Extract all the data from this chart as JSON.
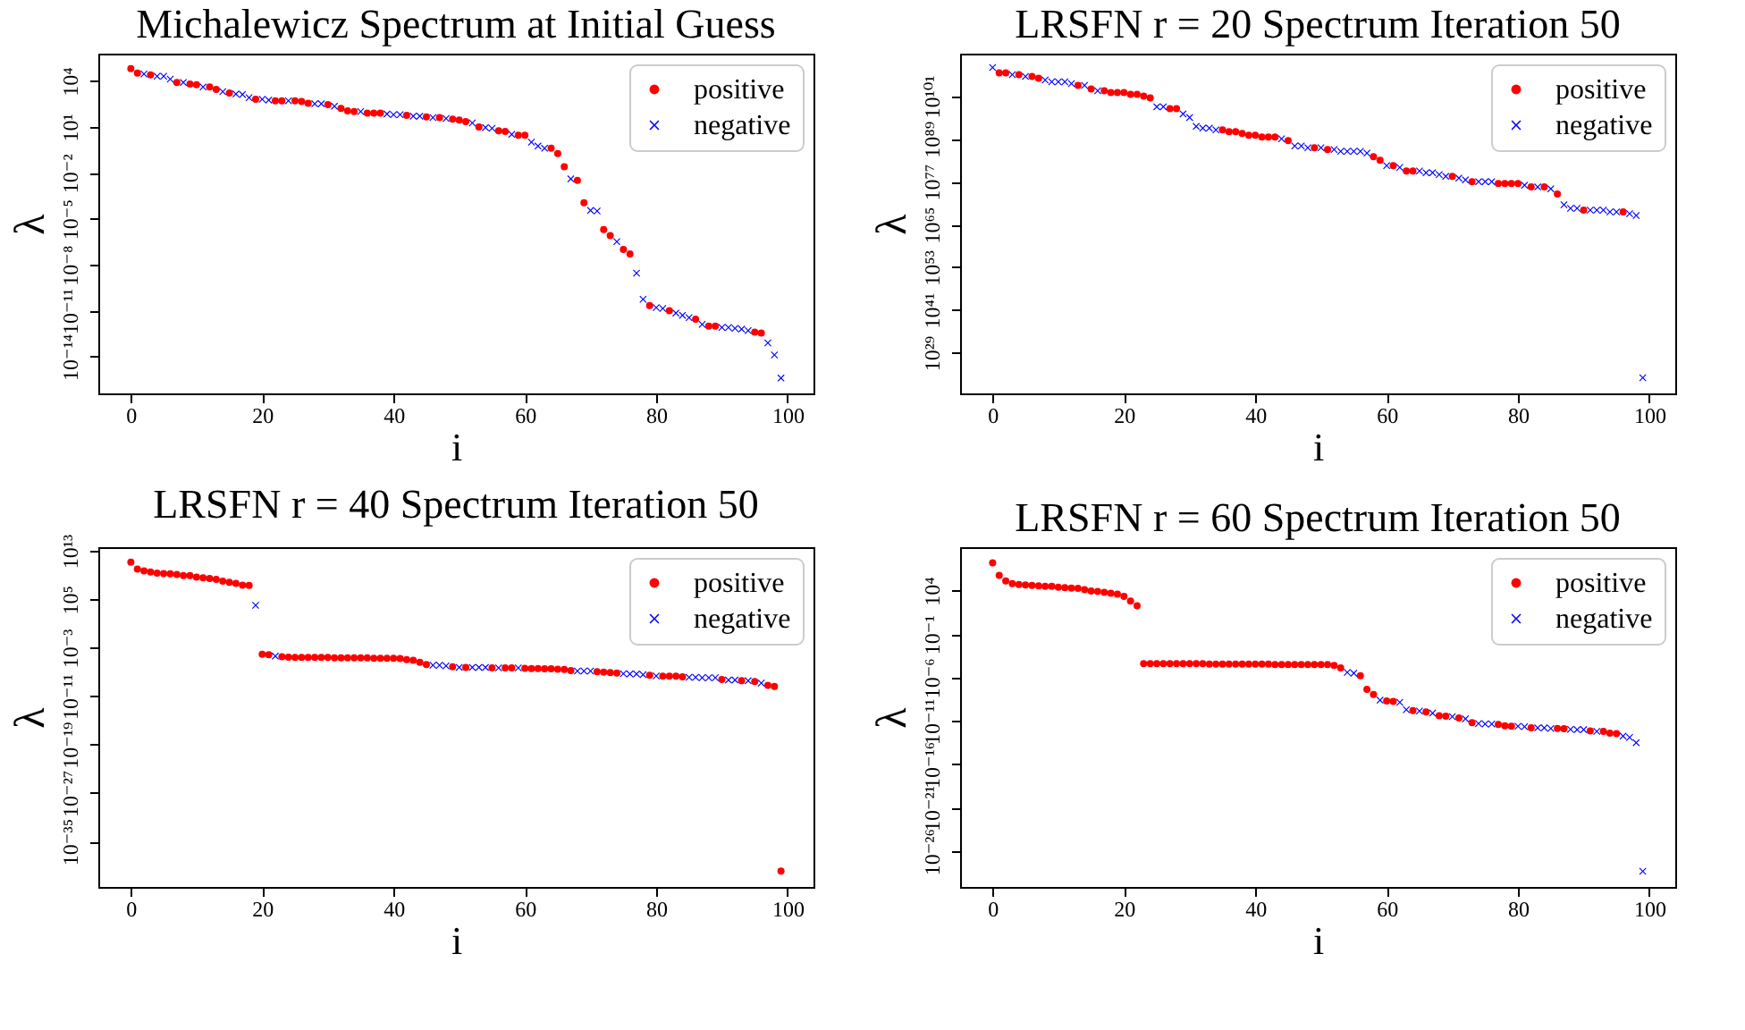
{
  "chart_data": [
    {
      "type": "scatter",
      "title": "Michalewicz Spectrum at Initial Guess",
      "xlabel": "i",
      "ylabel": "λ",
      "log": "y",
      "grid": false,
      "legend": "top right",
      "xlim": [
        -4.95,
        103.95
      ],
      "xticks": [
        0,
        20,
        40,
        60,
        80,
        100
      ],
      "ylim": [
        4e-17,
        600000.0
      ],
      "yticks": [
        {
          "value": 1e-14,
          "label": "10⁻¹⁴"
        },
        {
          "value": 1e-11,
          "label": "10⁻¹¹"
        },
        {
          "value": 1e-08,
          "label": "10⁻⁸"
        },
        {
          "value": 1e-05,
          "label": "10⁻⁵"
        },
        {
          "value": 0.01,
          "label": "10⁻²"
        },
        {
          "value": 10,
          "label": "10¹"
        },
        {
          "value": 10000.0,
          "label": "10⁴"
        }
      ],
      "series": [
        {
          "name": "positive",
          "color": "#ff0000",
          "marker": "circle",
          "x": [
            0,
            1,
            3,
            7,
            9,
            10,
            12,
            13,
            15,
            19,
            22,
            23,
            25,
            26,
            27,
            30,
            32,
            33,
            34,
            36,
            37,
            38,
            42,
            45,
            47,
            49,
            50,
            51,
            53,
            56,
            57,
            59,
            60,
            64,
            65,
            66,
            68,
            69,
            72,
            73,
            75,
            76,
            79,
            82,
            86,
            88,
            89,
            95,
            96
          ],
          "values": [
            63000.0,
            32000.0,
            25000.0,
            8000.0,
            6300.0,
            5600.0,
            4000.0,
            2800.0,
            1600.0,
            630.0,
            500.0,
            500.0,
            500.0,
            450.0,
            350.0,
            280.0,
            160.0,
            110.0,
            100.0,
            80,
            80,
            80,
            56,
            45,
            40,
            32,
            28,
            22,
            10,
            5.6,
            5,
            2.8,
            2.8,
            0.4,
            0.18,
            0.025,
            0.0032,
            0.00011,
            2e-06,
            8e-07,
            1e-07,
            5e-08,
            2.2e-11,
            1e-11,
            2.8e-12,
            1e-12,
            1e-12,
            4e-13,
            3.5e-13
          ]
        },
        {
          "name": "negative",
          "color": "#0000ff",
          "marker": "cross",
          "x": [
            2,
            4,
            5,
            6,
            8,
            11,
            14,
            16,
            17,
            18,
            20,
            21,
            24,
            28,
            29,
            31,
            35,
            39,
            40,
            41,
            43,
            44,
            46,
            48,
            52,
            54,
            55,
            58,
            61,
            62,
            63,
            67,
            70,
            71,
            74,
            77,
            78,
            80,
            81,
            83,
            84,
            85,
            87,
            90,
            91,
            92,
            93,
            94,
            97,
            98,
            99
          ],
          "values": [
            28000.0,
            20000.0,
            20000.0,
            13000.0,
            8000.0,
            4000.0,
            2000.0,
            1400.0,
            1300.0,
            800.0,
            630.0,
            560.0,
            500.0,
            320.0,
            320.0,
            220.0,
            100.0,
            70,
            63,
            63,
            50,
            50,
            40,
            35,
            18,
            9,
            8,
            3.2,
            1,
            0.56,
            0.4,
            0.004,
            3.5e-05,
            3.2e-05,
            3.2e-07,
            2.8e-09,
            5.6e-11,
            1.6e-11,
            1.4e-11,
            7e-12,
            5e-12,
            3.5e-12,
            1.3e-12,
            8e-13,
            8e-13,
            7e-13,
            6.3e-13,
            5e-13,
            8e-14,
            1.3e-14,
            4e-16
          ]
        }
      ]
    },
    {
      "type": "scatter",
      "title": "LRSFN r = 20 Spectrum Iteration 50",
      "xlabel": "i",
      "ylabel": "λ",
      "log": "y",
      "grid": false,
      "legend": "top right",
      "xlim": [
        -4.95,
        103.95
      ],
      "xticks": [
        0,
        20,
        40,
        60,
        80,
        100
      ],
      "ylim": [
        4e+17,
        8e+112
      ],
      "yticks": [
        {
          "value": 1e+29,
          "label": "10²⁹"
        },
        {
          "value": 1e+41,
          "label": "10⁴¹"
        },
        {
          "value": 1e+53,
          "label": "10⁵³"
        },
        {
          "value": 1e+65,
          "label": "10⁶⁵"
        },
        {
          "value": 1e+77,
          "label": "10⁷⁷"
        },
        {
          "value": 1e+89,
          "label": "10⁸⁹"
        },
        {
          "value": 1e+101,
          "label": "10¹⁰¹"
        }
      ],
      "series": [
        {
          "name": "positive",
          "color": "#ff0000",
          "marker": "circle",
          "x": [
            1,
            2,
            4,
            6,
            7,
            13,
            15,
            17,
            18,
            19,
            20,
            21,
            22,
            23,
            24,
            27,
            28,
            35,
            36,
            37,
            38,
            39,
            40,
            41,
            42,
            43,
            45,
            49,
            51,
            58,
            59,
            61,
            63,
            64,
            70,
            73,
            77,
            78,
            79,
            80,
            82,
            84,
            86,
            90,
            96
          ],
          "values": [
            3.2e+107,
            3.2e+107,
            1e+107,
            3.2e+106,
            1e+106,
            1e+104,
            1e+103,
            3.2e+102,
            1e+102,
            1e+102,
            1e+102,
            3.2e+101,
            3.2e+101,
            1e+101,
            3.2e+100,
            3.2e+97,
            3.2e+97,
            3.2e+91,
            1e+91,
            1e+91,
            3.2e+90,
            1e+90,
            1e+90,
            3.2e+89,
            3.2e+89,
            3.2e+89,
            3.2e+88,
            3.2e+86,
            1e+86,
            1e+84,
            1e+83,
            3.2e+81,
            1e+80,
            1e+80,
            3.2e+78,
            1e+77,
            3.2e+76,
            3.2e+76,
            3.2e+76,
            3.2e+76,
            3.2e+75,
            3.2e+75,
            3.2e+73,
            1e+69,
            3.2e+68
          ]
        },
        {
          "name": "negative",
          "color": "#0000ff",
          "marker": "cross",
          "x": [
            0,
            3,
            5,
            8,
            9,
            10,
            11,
            12,
            14,
            16,
            25,
            26,
            29,
            30,
            31,
            32,
            33,
            34,
            44,
            46,
            47,
            48,
            50,
            52,
            53,
            54,
            55,
            56,
            57,
            60,
            62,
            65,
            66,
            67,
            68,
            69,
            71,
            72,
            74,
            75,
            76,
            81,
            83,
            85,
            87,
            88,
            89,
            91,
            92,
            93,
            94,
            95,
            97,
            98,
            99
          ],
          "values": [
            1e+109,
            1e+107,
            3.2e+106,
            3.2e+105,
            1e+105,
            1e+105,
            1e+105,
            3.2e+104,
            1e+104,
            3.2e+102,
            1e+98,
            1e+98,
            1e+96,
            1e+95,
            3.2e+92,
            1e+92,
            1e+92,
            3.2e+91,
            1e+89,
            1e+87,
            1e+87,
            3.2e+86,
            3.2e+86,
            1e+86,
            3.2e+85,
            3.2e+85,
            3.2e+85,
            3.2e+85,
            1e+85,
            3.2e+81,
            1e+81,
            1e+80,
            3.2e+79,
            3.2e+79,
            1e+79,
            3.2e+78,
            1e+78,
            3.2e+77,
            1e+77,
            1e+77,
            1e+77,
            1e+76,
            3.2e+75,
            1e+75,
            3.2e+70,
            3.2e+69,
            3.2e+69,
            1e+69,
            1e+69,
            1e+69,
            3.2e+68,
            3.2e+68,
            1e+68,
            3.2e+67,
            1e+22
          ]
        }
      ]
    },
    {
      "type": "scatter",
      "title": "LRSFN r = 40 Spectrum Iteration 50",
      "xlabel": "i",
      "ylabel": "λ",
      "log": "y",
      "grid": false,
      "legend": "top right",
      "xlim": [
        -4.95,
        103.95
      ],
      "xticks": [
        0,
        20,
        40,
        60,
        80,
        100
      ],
      "ylim": [
        3e-43,
        40000000000000.0
      ],
      "yticks": [
        {
          "value": 1e-35,
          "label": "10⁻³⁵"
        },
        {
          "value": 1e-27,
          "label": "10⁻²⁷"
        },
        {
          "value": 1e-19,
          "label": "10⁻¹⁹"
        },
        {
          "value": 1e-11,
          "label": "10⁻¹¹"
        },
        {
          "value": 0.001,
          "label": "10⁻³"
        },
        {
          "value": 100000.0,
          "label": "10⁵"
        },
        {
          "value": 10000000000000.0,
          "label": "10¹³"
        }
      ],
      "series": [
        {
          "name": "positive",
          "color": "#ff0000",
          "marker": "circle",
          "x": [
            0,
            1,
            2,
            3,
            4,
            5,
            6,
            7,
            8,
            9,
            10,
            11,
            12,
            13,
            14,
            15,
            16,
            17,
            18,
            20,
            21,
            23,
            24,
            25,
            26,
            27,
            28,
            29,
            30,
            31,
            32,
            33,
            34,
            35,
            36,
            37,
            38,
            39,
            40,
            41,
            42,
            43,
            44,
            45,
            49,
            51,
            55,
            57,
            58,
            60,
            61,
            62,
            63,
            64,
            65,
            66,
            67,
            71,
            72,
            73,
            74,
            79,
            81,
            82,
            83,
            84,
            90,
            93,
            95,
            97,
            98,
            99
          ],
          "values": [
            130000000000.0,
            10000000000.0,
            5000000000.0,
            3200000000.0,
            2000000000.0,
            1800000000.0,
            1600000000.0,
            1300000000.0,
            800000000.0,
            800000000.0,
            450000000.0,
            350000000.0,
            280000000.0,
            200000000.0,
            100000000.0,
            63000000.0,
            40000000.0,
            22000000.0,
            20000000.0,
            8e-05,
            7e-05,
            3.2e-05,
            2.8e-05,
            2.5e-05,
            2.5e-05,
            2.5e-05,
            2.5e-05,
            2.5e-05,
            2.5e-05,
            2.2e-05,
            2.2e-05,
            2.2e-05,
            2.2e-05,
            2.2e-05,
            2.2e-05,
            1.8e-05,
            1.8e-05,
            1.8e-05,
            1.8e-05,
            1.6e-05,
            1.1e-05,
            8e-06,
            4e-06,
            1.6e-06,
            7e-07,
            5.6e-07,
            4.5e-07,
            4.5e-07,
            4.5e-07,
            4e-07,
            3.5e-07,
            3.5e-07,
            3.2e-07,
            3.2e-07,
            2.8e-07,
            2.5e-07,
            1.6e-07,
            1.1e-07,
            9e-08,
            8e-08,
            6.3e-08,
            2.8e-08,
            2e-08,
            2e-08,
            2e-08,
            1.6e-08,
            5.6e-09,
            3.5e-09,
            2.5e-09,
            6.3e-10,
            4e-10,
            1.3e-40
          ]
        },
        {
          "name": "negative",
          "color": "#0000ff",
          "marker": "cross",
          "x": [
            19,
            22,
            46,
            47,
            48,
            50,
            52,
            53,
            54,
            56,
            59,
            68,
            69,
            70,
            75,
            76,
            77,
            78,
            80,
            85,
            86,
            87,
            88,
            89,
            91,
            92,
            94,
            96
          ],
          "values": [
            10000.0,
            4e-05,
            1.3e-06,
            1.3e-06,
            1e-06,
            5.6e-07,
            5.6e-07,
            5.6e-07,
            5.6e-07,
            4.5e-07,
            4.5e-07,
            1.4e-07,
            1.4e-07,
            1.4e-07,
            5e-08,
            4.5e-08,
            4.5e-08,
            3.5e-08,
            2.2e-08,
            1.3e-08,
            1.3e-08,
            1.1e-08,
            1.1e-08,
            1.1e-08,
            4.5e-09,
            4.5e-09,
            3.5e-09,
            1.4e-09
          ]
        }
      ]
    },
    {
      "type": "scatter",
      "title": "LRSFN r = 60 Spectrum Iteration 50",
      "xlabel": "i",
      "ylabel": "λ",
      "log": "y",
      "grid": false,
      "legend": "top right",
      "xlim": [
        -4.95,
        103.95
      ],
      "xticks": [
        0,
        20,
        40,
        60,
        80,
        100
      ],
      "ylim": [
        8e-31,
        1000000000.0
      ],
      "yticks": [
        {
          "value": 1e-26,
          "label": "10⁻²⁶"
        },
        {
          "value": 1e-21,
          "label": "10⁻²¹"
        },
        {
          "value": 1e-16,
          "label": "10⁻¹⁶"
        },
        {
          "value": 1e-11,
          "label": "10⁻¹¹"
        },
        {
          "value": 1e-06,
          "label": "10⁻⁶"
        },
        {
          "value": 0.1,
          "label": "10⁻¹"
        },
        {
          "value": 10000.0,
          "label": "10⁴"
        }
      ],
      "series": [
        {
          "name": "positive",
          "color": "#ff0000",
          "marker": "circle",
          "x": [
            0,
            1,
            2,
            3,
            4,
            5,
            6,
            7,
            8,
            9,
            10,
            11,
            12,
            13,
            14,
            15,
            16,
            17,
            18,
            19,
            20,
            21,
            22,
            23,
            24,
            25,
            26,
            27,
            28,
            29,
            30,
            31,
            32,
            33,
            34,
            35,
            36,
            37,
            38,
            39,
            40,
            41,
            42,
            43,
            44,
            45,
            46,
            47,
            48,
            49,
            50,
            51,
            52,
            53,
            56,
            57,
            58,
            60,
            61,
            64,
            66,
            68,
            69,
            71,
            73,
            77,
            78,
            79,
            82,
            86,
            87,
            91,
            93,
            94,
            95
          ],
          "values": [
            16000000.0,
            560000.0,
            130000.0,
            63000.0,
            50000.0,
            45000.0,
            40000.0,
            35000.0,
            32000.0,
            32000.0,
            25000.0,
            22000.0,
            20000.0,
            18000.0,
            13000.0,
            9000.0,
            8000.0,
            6300.0,
            5000.0,
            4000.0,
            2200.0,
            630.0,
            180.0,
            4e-05,
            4e-05,
            4e-05,
            4e-05,
            4e-05,
            4e-05,
            4e-05,
            4e-05,
            4e-05,
            4e-05,
            3.5e-05,
            3.5e-05,
            3.5e-05,
            3.5e-05,
            3.5e-05,
            3.5e-05,
            3.5e-05,
            3.5e-05,
            3.5e-05,
            3.5e-05,
            3.2e-05,
            3.2e-05,
            3.2e-05,
            3.2e-05,
            3.2e-05,
            3.2e-05,
            3.2e-05,
            3.2e-05,
            3.2e-05,
            2.5e-05,
            1.3e-05,
            1.6e-06,
            4.5e-08,
            1.1e-08,
            2e-09,
            1.8e-09,
            1.6e-10,
            1.1e-10,
            4e-11,
            3.5e-11,
            2.2e-11,
            6.3e-12,
            4e-12,
            2.8e-12,
            2.5e-12,
            1.6e-12,
            1.4e-12,
            1.3e-12,
            7e-13,
            6.3e-13,
            4e-13,
            3.5e-13
          ]
        },
        {
          "name": "negative",
          "color": "#0000ff",
          "marker": "cross",
          "x": [
            54,
            55,
            59,
            62,
            63,
            65,
            67,
            70,
            72,
            74,
            75,
            76,
            80,
            81,
            83,
            84,
            85,
            88,
            89,
            90,
            92,
            96,
            97,
            98,
            99
          ],
          "values": [
            4e-06,
            3.2e-06,
            2.5e-09,
            1.4e-09,
            2e-10,
            1.4e-10,
            8e-11,
            3.2e-11,
            1.8e-11,
            5e-12,
            4.5e-12,
            4.5e-12,
            2.5e-12,
            2.2e-12,
            1.6e-12,
            1.6e-12,
            1.4e-12,
            1.1e-12,
            1e-12,
            1e-12,
            6.3e-13,
            1.8e-13,
            1.3e-13,
            3.2e-14,
            5e-29
          ]
        }
      ]
    }
  ]
}
